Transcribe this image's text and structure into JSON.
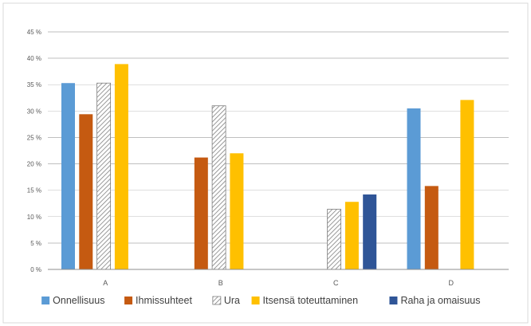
{
  "chart_data": {
    "type": "bar",
    "categories": [
      "A",
      "B",
      "C",
      "D"
    ],
    "ylim": [
      0,
      45
    ],
    "yticks": [
      0,
      5,
      10,
      15,
      20,
      25,
      30,
      35,
      40,
      45
    ],
    "ytick_labels": [
      "0 %",
      "5 %",
      "10 %",
      "15 %",
      "20 %",
      "25 %",
      "30 %",
      "35 %",
      "40 %",
      "45 %"
    ],
    "grid": true,
    "legend_position": "bottom",
    "title": "",
    "xlabel": "",
    "ylabel": "",
    "series": [
      {
        "name": "Onnellisuus",
        "color": "#5B9BD5",
        "pattern": "solid",
        "values": [
          35.3,
          null,
          null,
          30.5
        ]
      },
      {
        "name": "Ihmissuhteet",
        "color": "#C55A11",
        "pattern": "solid",
        "values": [
          29.4,
          21.2,
          null,
          15.8
        ]
      },
      {
        "name": "Ura",
        "color": "#A5A5A5",
        "pattern": "hatched",
        "values": [
          35.3,
          31.0,
          11.4,
          null
        ]
      },
      {
        "name": "Itsensä toteuttaminen",
        "color": "#FFC000",
        "pattern": "solid",
        "values": [
          38.9,
          22.0,
          12.8,
          32.1
        ]
      },
      {
        "name": "Raha ja omaisuus",
        "color": "#2F5597",
        "pattern": "solid",
        "values": [
          null,
          null,
          14.2,
          null
        ]
      }
    ]
  }
}
